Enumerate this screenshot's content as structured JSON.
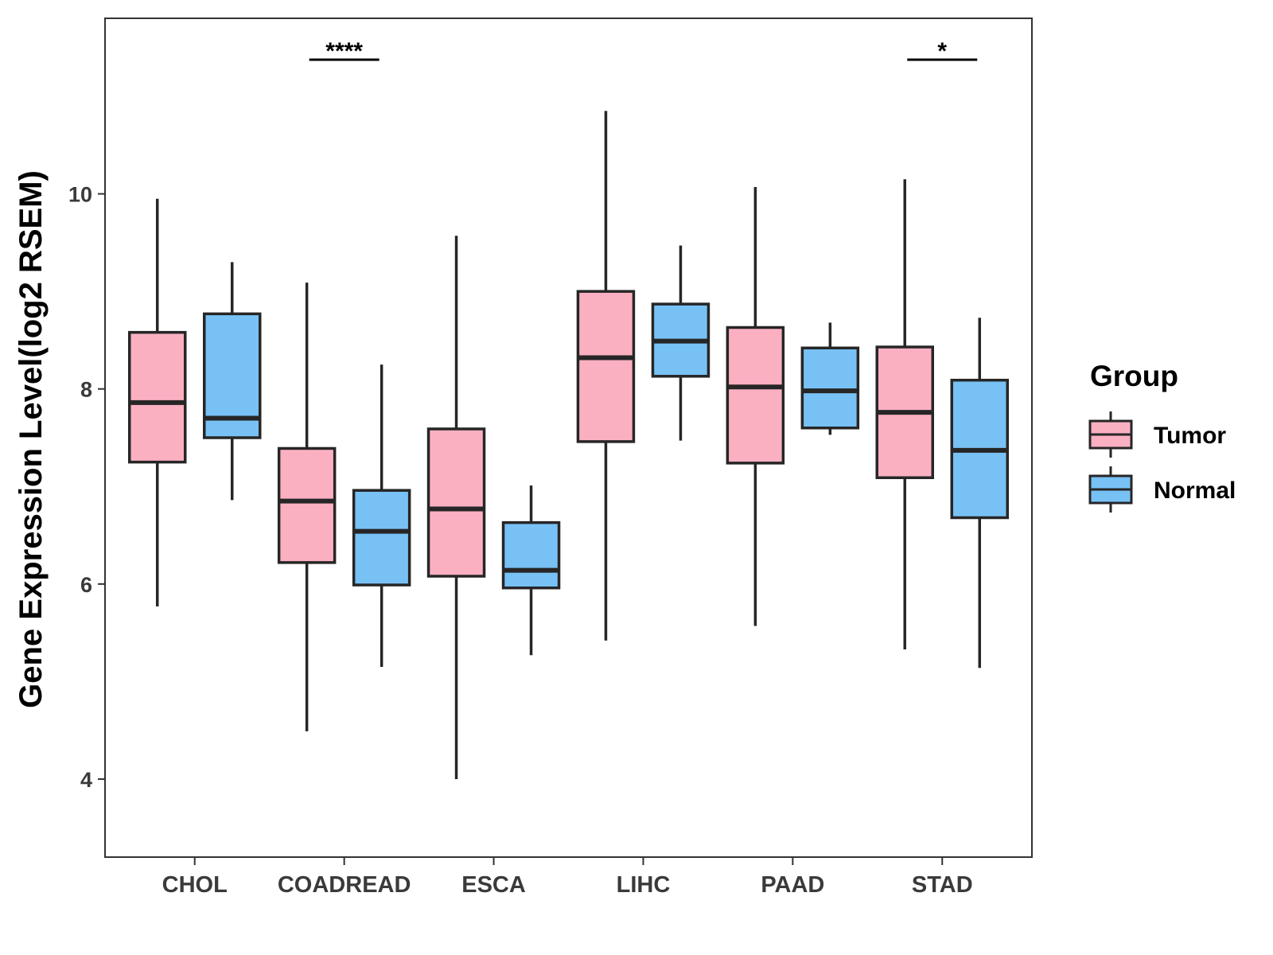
{
  "chart_data": {
    "type": "boxplot",
    "title": "",
    "xlabel": "",
    "ylabel": "Gene Expression Level(log2 RSEM)",
    "ylim": [
      3.2,
      11.8
    ],
    "yticks": [
      4,
      6,
      8,
      10
    ],
    "categories": [
      "CHOL",
      "COADREAD",
      "ESCA",
      "LIHC",
      "PAAD",
      "STAD"
    ],
    "legend": {
      "title": "Group",
      "position": "right",
      "entries": [
        "Tumor",
        "Normal"
      ]
    },
    "series": [
      {
        "name": "Tumor",
        "color": "#fbb0c2",
        "boxes": [
          {
            "category": "CHOL",
            "min": 5.77,
            "q1": 7.25,
            "median": 7.86,
            "q3": 8.58,
            "max": 9.95
          },
          {
            "category": "COADREAD",
            "min": 4.49,
            "q1": 6.22,
            "median": 6.85,
            "q3": 7.39,
            "max": 9.09
          },
          {
            "category": "ESCA",
            "min": 4.0,
            "q1": 6.08,
            "median": 6.77,
            "q3": 7.59,
            "max": 9.57
          },
          {
            "category": "LIHC",
            "min": 5.42,
            "q1": 7.46,
            "median": 8.32,
            "q3": 9.0,
            "max": 10.85
          },
          {
            "category": "PAAD",
            "min": 5.57,
            "q1": 7.24,
            "median": 8.02,
            "q3": 8.63,
            "max": 10.07
          },
          {
            "category": "STAD",
            "min": 5.33,
            "q1": 7.09,
            "median": 7.76,
            "q3": 8.43,
            "max": 10.15
          }
        ]
      },
      {
        "name": "Normal",
        "color": "#78c1f5",
        "boxes": [
          {
            "category": "CHOL",
            "min": 6.86,
            "q1": 7.5,
            "median": 7.7,
            "q3": 8.77,
            "max": 9.3
          },
          {
            "category": "COADREAD",
            "min": 5.15,
            "q1": 5.99,
            "median": 6.54,
            "q3": 6.96,
            "max": 8.25
          },
          {
            "category": "ESCA",
            "min": 5.27,
            "q1": 5.96,
            "median": 6.14,
            "q3": 6.63,
            "max": 7.01
          },
          {
            "category": "LIHC",
            "min": 7.47,
            "q1": 8.13,
            "median": 8.49,
            "q3": 8.87,
            "max": 9.47
          },
          {
            "category": "PAAD",
            "min": 7.53,
            "q1": 7.6,
            "median": 7.98,
            "q3": 8.42,
            "max": 8.68
          },
          {
            "category": "STAD",
            "min": 5.14,
            "q1": 6.68,
            "median": 7.37,
            "q3": 8.09,
            "max": 8.73
          }
        ]
      }
    ],
    "significance": [
      {
        "category": "COADREAD",
        "label": "****"
      },
      {
        "category": "STAD",
        "label": "*"
      }
    ]
  }
}
